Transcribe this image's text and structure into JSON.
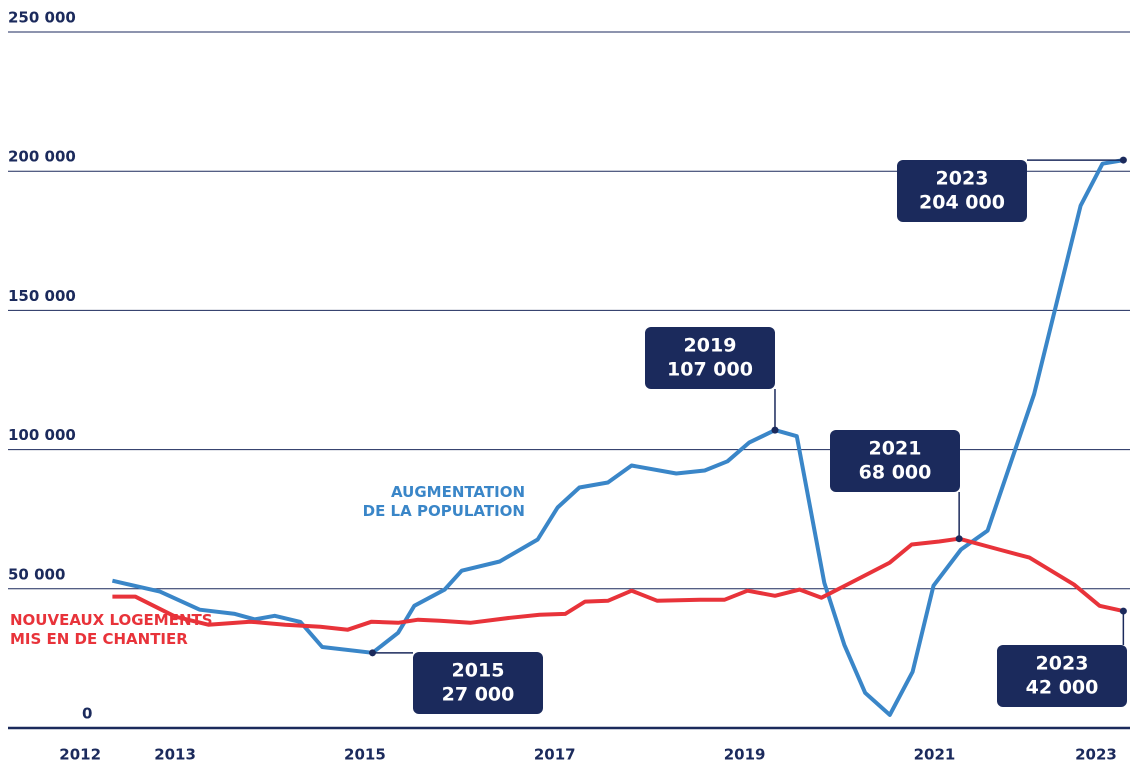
{
  "chart_data": {
    "type": "line",
    "xlim": [
      2011.24,
      2023.06
    ],
    "xticks": [
      2012,
      2013,
      2015,
      2017,
      2019,
      2021,
      2023
    ],
    "ylim": [
      0,
      250000
    ],
    "yticks": [
      0,
      {
        "value": 50000,
        "label": "50 000"
      },
      {
        "value": 100000,
        "label": "100 000"
      },
      {
        "value": 150000,
        "label": "150 000"
      },
      {
        "value": 200000,
        "label": "200 000"
      },
      {
        "value": 250000,
        "label": "250 000"
      }
    ],
    "grid": true,
    "series": [
      {
        "name": "AUGMENTATION\nDE LA POPULATION",
        "color": "#3a86c8",
        "x": [
          2012.34,
          2012.84,
          2013.26,
          2013.63,
          2013.84,
          2014.05,
          2014.32,
          2014.55,
          2015.08,
          2015.35,
          2015.52,
          2015.84,
          2016.02,
          2016.42,
          2016.82,
          2017.03,
          2017.26,
          2017.56,
          2017.81,
          2018.28,
          2018.58,
          2018.82,
          2019.05,
          2019.32,
          2019.55,
          2019.84,
          2020.05,
          2020.27,
          2020.53,
          2020.77,
          2020.99,
          2021.28,
          2021.56,
          2022.05,
          2022.54,
          2022.77,
          2022.99
        ],
        "values": [
          52900,
          49000,
          42500,
          41000,
          39000,
          40300,
          38100,
          29100,
          27000,
          34200,
          43900,
          49700,
          56500,
          59800,
          67700,
          79200,
          86400,
          88200,
          94300,
          91400,
          92500,
          95800,
          102600,
          107000,
          104800,
          52200,
          29900,
          12600,
          4700,
          20200,
          51100,
          64100,
          70900,
          119900,
          187600,
          202700,
          204000
        ]
      },
      {
        "name": "NOUVEAUX LOGEMENTS\nMIS EN DE CHANTIER",
        "color": "#e8333a",
        "x": [
          2012.34,
          2012.58,
          2013.0,
          2013.35,
          2013.79,
          2014.16,
          2014.53,
          2014.82,
          2015.07,
          2015.35,
          2015.56,
          2015.79,
          2016.11,
          2016.53,
          2016.84,
          2017.11,
          2017.32,
          2017.56,
          2017.81,
          2018.08,
          2018.53,
          2018.79,
          2019.03,
          2019.32,
          2019.58,
          2019.81,
          2020.08,
          2020.53,
          2020.76,
          2021.05,
          2021.26,
          2021.68,
          2022.0,
          2022.47,
          2022.74,
          2022.99
        ],
        "values": [
          47200,
          47200,
          40000,
          37100,
          38200,
          37100,
          36400,
          35300,
          38200,
          37800,
          38900,
          38500,
          37800,
          39600,
          40700,
          41000,
          45400,
          45700,
          49300,
          45700,
          46100,
          46100,
          49300,
          47500,
          49700,
          46800,
          51500,
          59400,
          65900,
          67000,
          68000,
          64100,
          61200,
          51500,
          43900,
          42000
        ]
      }
    ],
    "annotations": [
      {
        "year": "2015",
        "text": "27 000"
      },
      {
        "year": "2019",
        "text": "107 000"
      },
      {
        "year": "2021",
        "text": "68 000"
      },
      {
        "year": "2023",
        "text": "204 000"
      },
      {
        "year": "2023",
        "text": "42 000"
      }
    ]
  }
}
